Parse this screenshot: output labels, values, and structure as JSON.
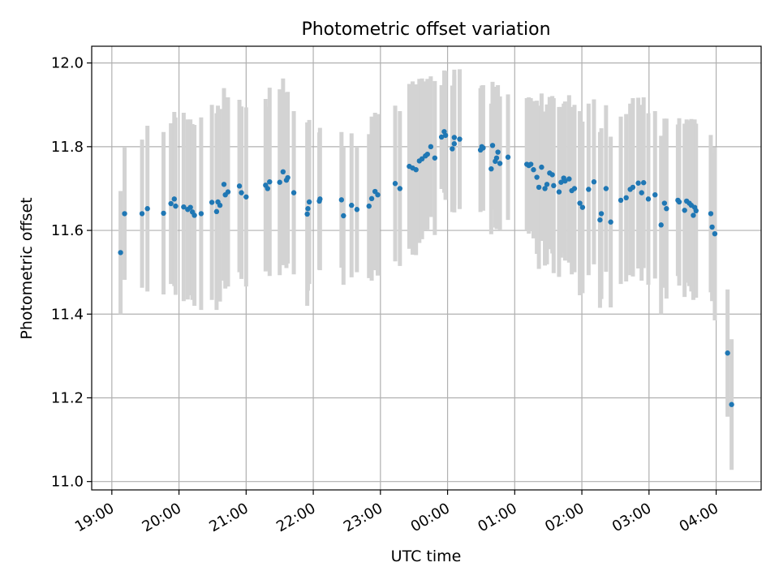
{
  "chart_data": {
    "type": "scatter",
    "title": "Photometric offset variation",
    "xlabel": "UTC time",
    "ylabel": "Photometric offset",
    "ylim": [
      10.98,
      12.04
    ],
    "xlim_hours": [
      -5.3,
      4.67
    ],
    "grid": true,
    "colors": {
      "marker": "#1f77b4",
      "errorbar": "#d3d3d3"
    },
    "x_ticks": [
      {
        "label": "19:00",
        "h": -5
      },
      {
        "label": "20:00",
        "h": -4
      },
      {
        "label": "21:00",
        "h": -3
      },
      {
        "label": "22:00",
        "h": -2
      },
      {
        "label": "23:00",
        "h": -1
      },
      {
        "label": "00:00",
        "h": 0
      },
      {
        "label": "01:00",
        "h": 1
      },
      {
        "label": "02:00",
        "h": 2
      },
      {
        "label": "03:00",
        "h": 3
      },
      {
        "label": "04:00",
        "h": 4
      }
    ],
    "y_ticks": [
      {
        "label": "11.0",
        "v": 11.0
      },
      {
        "label": "11.2",
        "v": 11.2
      },
      {
        "label": "11.4",
        "v": 11.4
      },
      {
        "label": "11.6",
        "v": 11.6
      },
      {
        "label": "11.8",
        "v": 11.8
      },
      {
        "label": "12.0",
        "v": 12.0
      }
    ],
    "points": [
      [
        -4.87,
        11.547,
        0.147
      ],
      [
        -4.81,
        11.64,
        0.158
      ],
      [
        -4.55,
        11.64,
        0.177
      ],
      [
        -4.47,
        11.652,
        0.198
      ],
      [
        -4.23,
        11.641,
        0.194
      ],
      [
        -4.12,
        11.664,
        0.192
      ],
      [
        -4.07,
        11.675,
        0.208
      ],
      [
        -4.05,
        11.658,
        0.212
      ],
      [
        -3.93,
        11.656,
        0.225
      ],
      [
        -3.87,
        11.65,
        0.215
      ],
      [
        -3.83,
        11.655,
        0.21
      ],
      [
        -3.8,
        11.644,
        0.21
      ],
      [
        -3.77,
        11.636,
        0.216
      ],
      [
        -3.67,
        11.64,
        0.23
      ],
      [
        -3.51,
        11.667,
        0.233
      ],
      [
        -3.44,
        11.645,
        0.235
      ],
      [
        -3.42,
        11.668,
        0.23
      ],
      [
        -3.39,
        11.66,
        0.23
      ],
      [
        -3.33,
        11.71,
        0.23
      ],
      [
        -3.31,
        11.685,
        0.224
      ],
      [
        -3.27,
        11.692,
        0.226
      ],
      [
        -3.1,
        11.706,
        0.206
      ],
      [
        -3.07,
        11.69,
        0.206
      ],
      [
        -3.0,
        11.68,
        0.214
      ],
      [
        -2.71,
        11.708,
        0.206
      ],
      [
        -2.68,
        11.7,
        0.195
      ],
      [
        -2.65,
        11.716,
        0.225
      ],
      [
        -2.5,
        11.715,
        0.222
      ],
      [
        -2.45,
        11.74,
        0.223
      ],
      [
        -2.4,
        11.72,
        0.21
      ],
      [
        -2.38,
        11.726,
        0.205
      ],
      [
        -2.29,
        11.69,
        0.195
      ],
      [
        -2.09,
        11.639,
        0.219
      ],
      [
        -2.08,
        11.652,
        0.196
      ],
      [
        -2.06,
        11.668,
        0.196
      ],
      [
        -1.91,
        11.67,
        0.164
      ],
      [
        -1.9,
        11.675,
        0.17
      ],
      [
        -1.58,
        11.673,
        0.162
      ],
      [
        -1.55,
        11.635,
        0.165
      ],
      [
        -1.43,
        11.66,
        0.172
      ],
      [
        -1.35,
        11.65,
        0.15
      ],
      [
        -1.17,
        11.658,
        0.172
      ],
      [
        -1.13,
        11.676,
        0.196
      ],
      [
        -1.08,
        11.693,
        0.188
      ],
      [
        -1.04,
        11.685,
        0.193
      ],
      [
        -0.78,
        11.712,
        0.186
      ],
      [
        -0.71,
        11.7,
        0.185
      ],
      [
        -0.57,
        11.753,
        0.197
      ],
      [
        -0.52,
        11.749,
        0.207
      ],
      [
        -0.47,
        11.745,
        0.204
      ],
      [
        -0.42,
        11.766,
        0.196
      ],
      [
        -0.38,
        11.771,
        0.192
      ],
      [
        -0.33,
        11.778,
        0.178
      ],
      [
        -0.3,
        11.782,
        0.18
      ],
      [
        -0.25,
        11.8,
        0.168
      ],
      [
        -0.19,
        11.773,
        0.184
      ],
      [
        -0.09,
        11.823,
        0.124
      ],
      [
        -0.05,
        11.836,
        0.146
      ],
      [
        -0.03,
        11.827,
        0.154
      ],
      [
        0.07,
        11.795,
        0.151
      ],
      [
        0.1,
        11.807,
        0.164
      ],
      [
        0.1,
        11.822,
        0.162
      ],
      [
        0.18,
        11.818,
        0.167
      ],
      [
        0.49,
        11.792,
        0.148
      ],
      [
        0.51,
        11.8,
        0.146
      ],
      [
        0.53,
        11.797,
        0.15
      ],
      [
        0.65,
        11.747,
        0.156
      ],
      [
        0.67,
        11.803,
        0.152
      ],
      [
        0.71,
        11.765,
        0.158
      ],
      [
        0.73,
        11.773,
        0.17
      ],
      [
        0.75,
        11.787,
        0.16
      ],
      [
        0.78,
        11.76,
        0.16
      ],
      [
        0.9,
        11.775,
        0.15
      ],
      [
        1.18,
        11.758,
        0.158
      ],
      [
        1.21,
        11.755,
        0.163
      ],
      [
        1.24,
        11.758,
        0.158
      ],
      [
        1.28,
        11.745,
        0.164
      ],
      [
        1.33,
        11.727,
        0.183
      ],
      [
        1.36,
        11.703,
        0.195
      ],
      [
        1.4,
        11.751,
        0.176
      ],
      [
        1.45,
        11.7,
        0.184
      ],
      [
        1.48,
        11.71,
        0.191
      ],
      [
        1.52,
        11.737,
        0.182
      ],
      [
        1.56,
        11.733,
        0.188
      ],
      [
        1.58,
        11.707,
        0.209
      ],
      [
        1.66,
        11.692,
        0.203
      ],
      [
        1.69,
        11.715,
        0.18
      ],
      [
        1.73,
        11.725,
        0.178
      ],
      [
        1.75,
        11.718,
        0.19
      ],
      [
        1.81,
        11.723,
        0.2
      ],
      [
        1.85,
        11.695,
        0.2
      ],
      [
        1.89,
        11.7,
        0.2
      ],
      [
        1.97,
        11.665,
        0.22
      ],
      [
        2.01,
        11.655,
        0.205
      ],
      [
        2.1,
        11.698,
        0.205
      ],
      [
        2.18,
        11.716,
        0.197
      ],
      [
        2.27,
        11.625,
        0.21
      ],
      [
        2.29,
        11.64,
        0.204
      ],
      [
        2.36,
        11.7,
        0.199
      ],
      [
        2.43,
        11.62,
        0.204
      ],
      [
        2.58,
        11.672,
        0.2
      ],
      [
        2.66,
        11.678,
        0.2
      ],
      [
        2.72,
        11.698,
        0.205
      ],
      [
        2.76,
        11.703,
        0.213
      ],
      [
        2.84,
        11.713,
        0.204
      ],
      [
        2.89,
        11.69,
        0.21
      ],
      [
        2.92,
        11.714,
        0.204
      ],
      [
        2.99,
        11.675,
        0.205
      ],
      [
        3.09,
        11.685,
        0.2
      ],
      [
        3.18,
        11.613,
        0.213
      ],
      [
        3.23,
        11.665,
        0.202
      ],
      [
        3.26,
        11.652,
        0.215
      ],
      [
        3.43,
        11.672,
        0.181
      ],
      [
        3.45,
        11.668,
        0.2
      ],
      [
        3.53,
        11.648,
        0.207
      ],
      [
        3.56,
        11.67,
        0.195
      ],
      [
        3.6,
        11.665,
        0.198
      ],
      [
        3.63,
        11.66,
        0.206
      ],
      [
        3.66,
        11.636,
        0.202
      ],
      [
        3.68,
        11.655,
        0.21
      ],
      [
        3.7,
        11.647,
        0.208
      ],
      [
        3.92,
        11.64,
        0.188
      ],
      [
        3.94,
        11.608,
        0.177
      ],
      [
        3.98,
        11.592,
        0.207
      ],
      [
        4.17,
        11.307,
        0.152
      ],
      [
        4.23,
        11.184,
        0.156
      ]
    ]
  }
}
